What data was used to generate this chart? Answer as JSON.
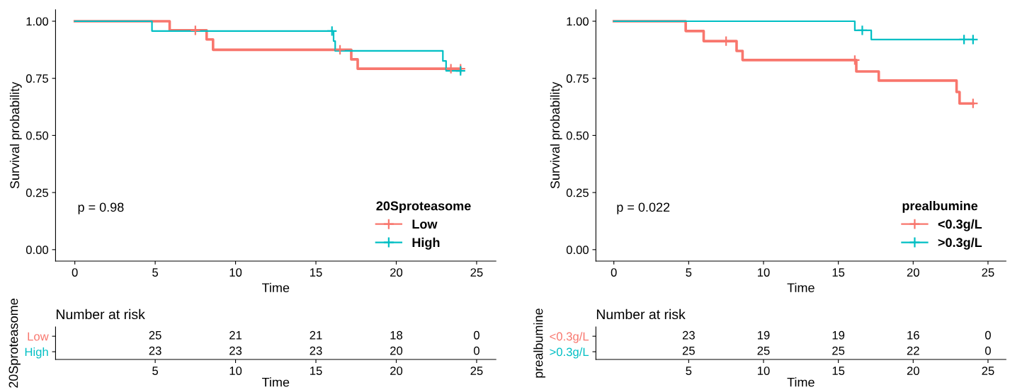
{
  "chart_data": [
    {
      "type": "step",
      "xlabel": "Time",
      "ylabel": "Survival probability",
      "legend_title": "20Sproteasome",
      "legend": "bottom right",
      "annotations": [
        "p = 0.98"
      ],
      "xlim": [
        -1.2,
        26.2
      ],
      "ylim": [
        -0.05,
        1.05
      ],
      "xticks": [
        0,
        5,
        10,
        15,
        20,
        25
      ],
      "yticks": [
        {
          "value": 0,
          "label": "0.00"
        },
        {
          "value": 0.25,
          "label": "0.25"
        },
        {
          "value": 0.5,
          "label": "0.50"
        },
        {
          "value": 0.75,
          "label": "0.75"
        },
        {
          "value": 1,
          "label": "1.00"
        }
      ],
      "grid": false,
      "series": [
        {
          "name": "Low",
          "color": "#f8766d",
          "x": [
            0,
            5.9,
            8.2,
            8.6,
            17.2,
            17.6,
            24
          ],
          "values": [
            1,
            0.96,
            0.92,
            0.875,
            0.833,
            0.792,
            0.792
          ]
        },
        {
          "name": "High",
          "color": "#00bfc4",
          "x": [
            0,
            4.8,
            16.1,
            16.2,
            22.9,
            23.1,
            24
          ],
          "values": [
            1,
            0.957,
            0.913,
            0.87,
            0.826,
            0.783,
            0.783
          ]
        },
        {
          "type": "scatter",
          "marker": "cross",
          "color": "#f8766d",
          "x": [
            7.5,
            16.5,
            23.4,
            24
          ],
          "values": [
            0.96,
            0.875,
            0.792,
            0.792
          ]
        },
        {
          "type": "scatter",
          "marker": "cross",
          "color": "#00bfc4",
          "x": [
            16.0,
            24
          ],
          "values": [
            0.957,
            0.783
          ]
        }
      ]
    },
    {
      "type": "heatmap",
      "title": "Number at risk",
      "xlabel": "Time",
      "ylabel": "20Sproteasome",
      "x": [
        5,
        10,
        15,
        20,
        25
      ],
      "xlim": [
        -1.2,
        26.2
      ],
      "xticks": [
        5,
        10,
        15,
        20,
        25
      ],
      "y_categories": [
        "Low",
        "High"
      ],
      "colors": [
        "#f8766d",
        "#00bfc4"
      ],
      "cells": [
        [
          25,
          21,
          21,
          18,
          0
        ],
        [
          23,
          23,
          23,
          20,
          0
        ]
      ],
      "data_labels": true
    },
    {
      "type": "step",
      "xlabel": "Time",
      "ylabel": "Survival probability",
      "legend_title": "prealbumine",
      "legend": "bottom right",
      "annotations": [
        "p = 0.022"
      ],
      "xlim": [
        -1.2,
        26.2
      ],
      "ylim": [
        -0.05,
        1.05
      ],
      "xticks": [
        0,
        5,
        10,
        15,
        20,
        25
      ],
      "yticks": [
        {
          "value": 0,
          "label": "0.00"
        },
        {
          "value": 0.25,
          "label": "0.25"
        },
        {
          "value": 0.5,
          "label": "0.50"
        },
        {
          "value": 0.75,
          "label": "0.75"
        },
        {
          "value": 1,
          "label": "1.00"
        }
      ],
      "grid": false,
      "series": [
        {
          "name": "<0.3g/L",
          "color": "#f8766d",
          "x": [
            0,
            4.8,
            6.0,
            8.2,
            8.6,
            16.2,
            17.7,
            22.9,
            23.1,
            24
          ],
          "values": [
            1,
            0.957,
            0.913,
            0.87,
            0.83,
            0.78,
            0.74,
            0.69,
            0.64,
            0.64
          ]
        },
        {
          "name": ">0.3g/L",
          "color": "#00bfc4",
          "x": [
            0,
            16.1,
            17.2,
            24
          ],
          "values": [
            1,
            0.96,
            0.92,
            0.92
          ]
        },
        {
          "type": "scatter",
          "marker": "cross",
          "color": "#f8766d",
          "x": [
            7.5,
            16.1,
            24
          ],
          "values": [
            0.913,
            0.83,
            0.64
          ]
        },
        {
          "type": "scatter",
          "marker": "cross",
          "color": "#00bfc4",
          "x": [
            16.6,
            23.4,
            24
          ],
          "values": [
            0.96,
            0.92,
            0.92
          ]
        }
      ]
    },
    {
      "type": "heatmap",
      "title": "Number at risk",
      "xlabel": "Time",
      "ylabel": "prealbumine",
      "x": [
        5,
        10,
        15,
        20,
        25
      ],
      "xlim": [
        -1.2,
        26.2
      ],
      "xticks": [
        5,
        10,
        15,
        20,
        25
      ],
      "y_categories": [
        "<0.3g/L",
        ">0.3g/L"
      ],
      "colors": [
        "#f8766d",
        "#00bfc4"
      ],
      "cells": [
        [
          23,
          19,
          19,
          16,
          0
        ],
        [
          25,
          25,
          25,
          22,
          0
        ]
      ],
      "data_labels": true
    }
  ]
}
